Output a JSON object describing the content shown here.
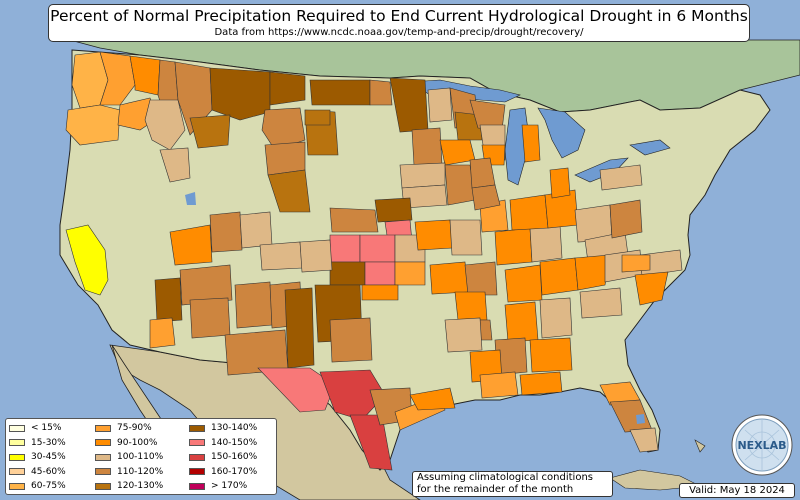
{
  "title": "Percent of Normal Precipitation Required to End Current Hydrological Drought in 6 Months",
  "subtitle": "Data from https://www.ncdc.noaa.gov/temp-and-precip/drought/recovery/",
  "legend": [
    {
      "label": "< 15%",
      "color": "#ffffe0"
    },
    {
      "label": "15-30%",
      "color": "#ffff9e"
    },
    {
      "label": "30-45%",
      "color": "#ffff00"
    },
    {
      "label": "45-60%",
      "color": "#ffd199"
    },
    {
      "label": "60-75%",
      "color": "#ffb347"
    },
    {
      "label": "75-90%",
      "color": "#ffa030"
    },
    {
      "label": "90-100%",
      "color": "#ff8c00"
    },
    {
      "label": "100-110%",
      "color": "#deb887"
    },
    {
      "label": "110-120%",
      "color": "#cd853f"
    },
    {
      "label": "120-130%",
      "color": "#b8730f"
    },
    {
      "label": "130-140%",
      "color": "#9c5a00"
    },
    {
      "label": "140-150%",
      "color": "#f87878"
    },
    {
      "label": "150-160%",
      "color": "#d94040"
    },
    {
      "label": "160-170%",
      "color": "#b30000"
    },
    {
      "label": "> 170%",
      "color": "#c0005a"
    }
  ],
  "note": {
    "line1": "Assuming climatological conditions",
    "line2": "for the remainder of the month"
  },
  "valid": "Valid: May 18 2024",
  "logo_text": "NEXLAB",
  "colors": {
    "ocean": "#8fb0d8",
    "lakes": "#6f9bd1",
    "land": "#d9dcb2",
    "mexico": "#d2c79f",
    "canada": "#a8c49a"
  }
}
